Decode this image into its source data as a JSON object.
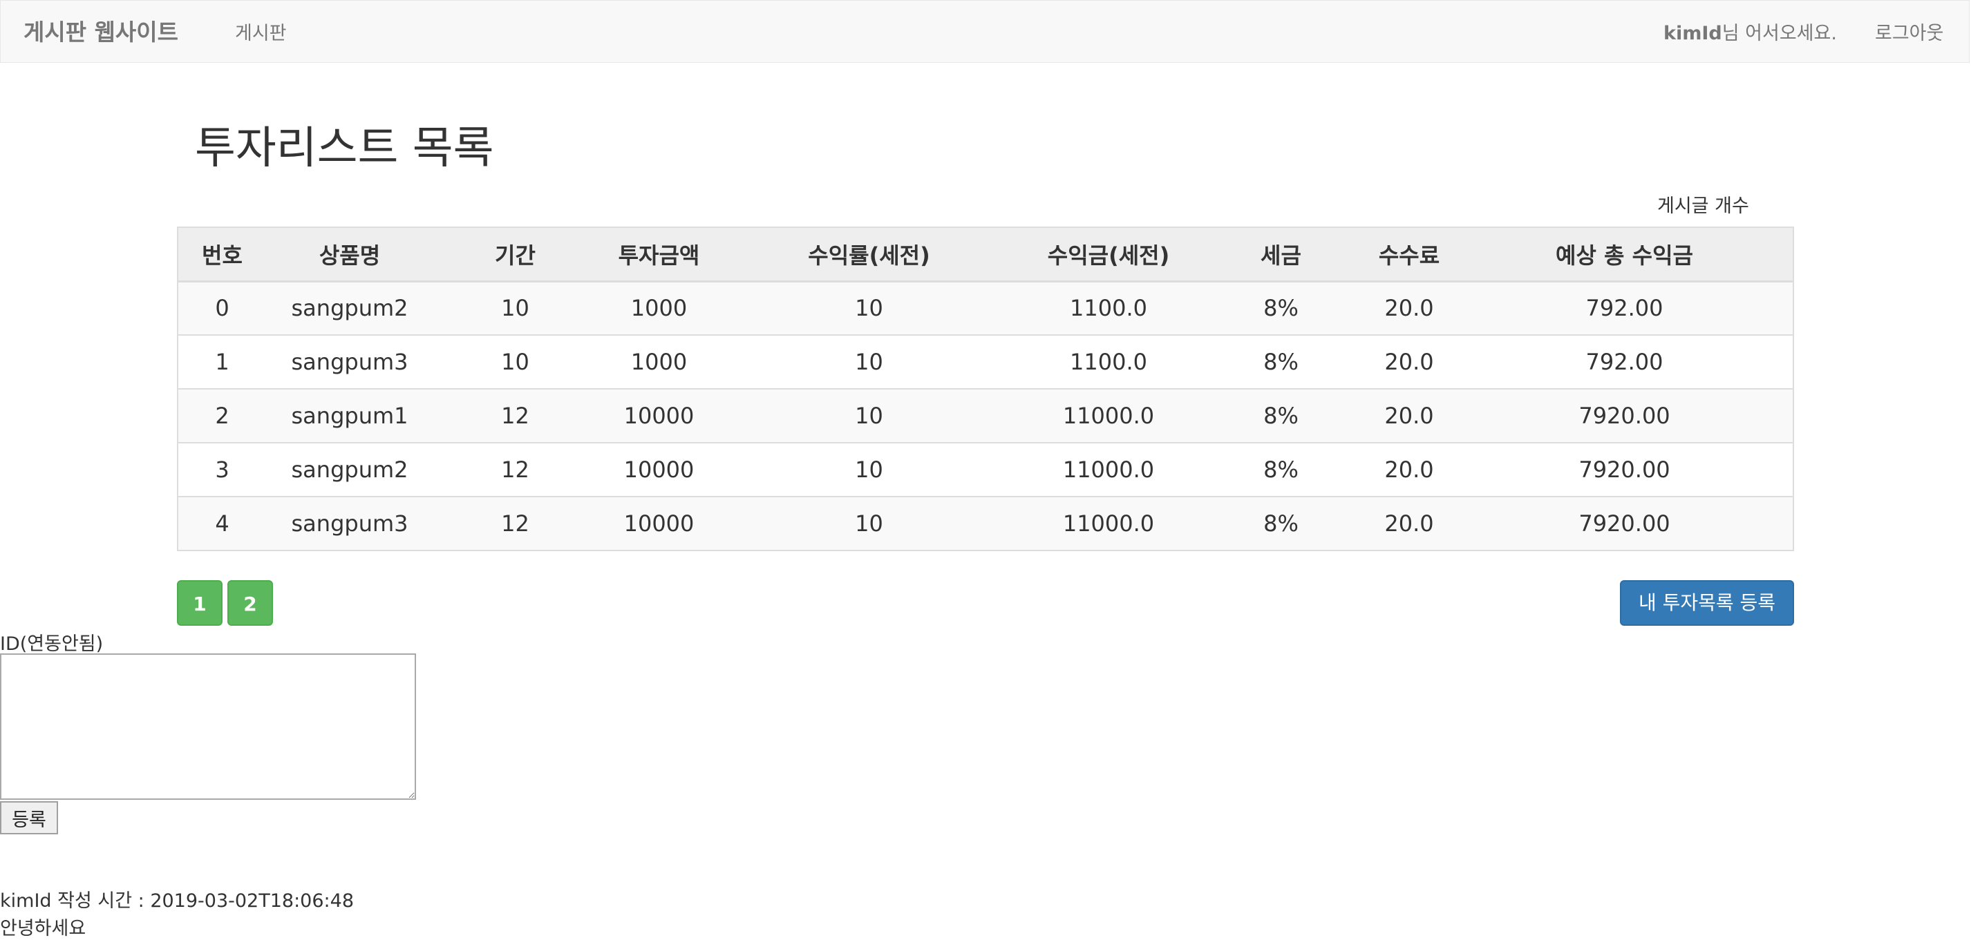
{
  "navbar": {
    "brand": "게시판 웹사이트",
    "board_link": "게시판",
    "user_name": "kimId",
    "user_greeting": "님 어서오세요.",
    "logout": "로그아웃"
  },
  "main": {
    "title": "투자리스트 목록",
    "post_count_label": "게시글 개수",
    "table": {
      "headers": [
        "번호",
        "상품명",
        "기간",
        "투자금액",
        "수익률(세전)",
        "수익금(세전)",
        "세금",
        "수수료",
        "예상 총 수익금"
      ],
      "rows": [
        [
          "0",
          "sangpum2",
          "10",
          "1000",
          "10",
          "1100.0",
          "8%",
          "20.0",
          "792.00"
        ],
        [
          "1",
          "sangpum3",
          "10",
          "1000",
          "10",
          "1100.0",
          "8%",
          "20.0",
          "792.00"
        ],
        [
          "2",
          "sangpum1",
          "12",
          "10000",
          "10",
          "11000.0",
          "8%",
          "20.0",
          "7920.00"
        ],
        [
          "3",
          "sangpum2",
          "12",
          "10000",
          "10",
          "11000.0",
          "8%",
          "20.0",
          "7920.00"
        ],
        [
          "4",
          "sangpum3",
          "12",
          "10000",
          "10",
          "11000.0",
          "8%",
          "20.0",
          "7920.00"
        ]
      ]
    },
    "pagination": [
      "1",
      "2"
    ],
    "register_button": "내 투자목록 등록"
  },
  "comment_form": {
    "id_label": "ID(연동안됨)",
    "textarea_value": "",
    "submit_label": "등록"
  },
  "comments": [
    {
      "meta": "kimId 작성 시간 : 2019-03-02T18:06:48",
      "text": "안녕하세요"
    }
  ],
  "colors": {
    "pagination_green": "#5cb85c",
    "primary_blue": "#337ab7",
    "navbar_bg": "#f8f8f8"
  }
}
